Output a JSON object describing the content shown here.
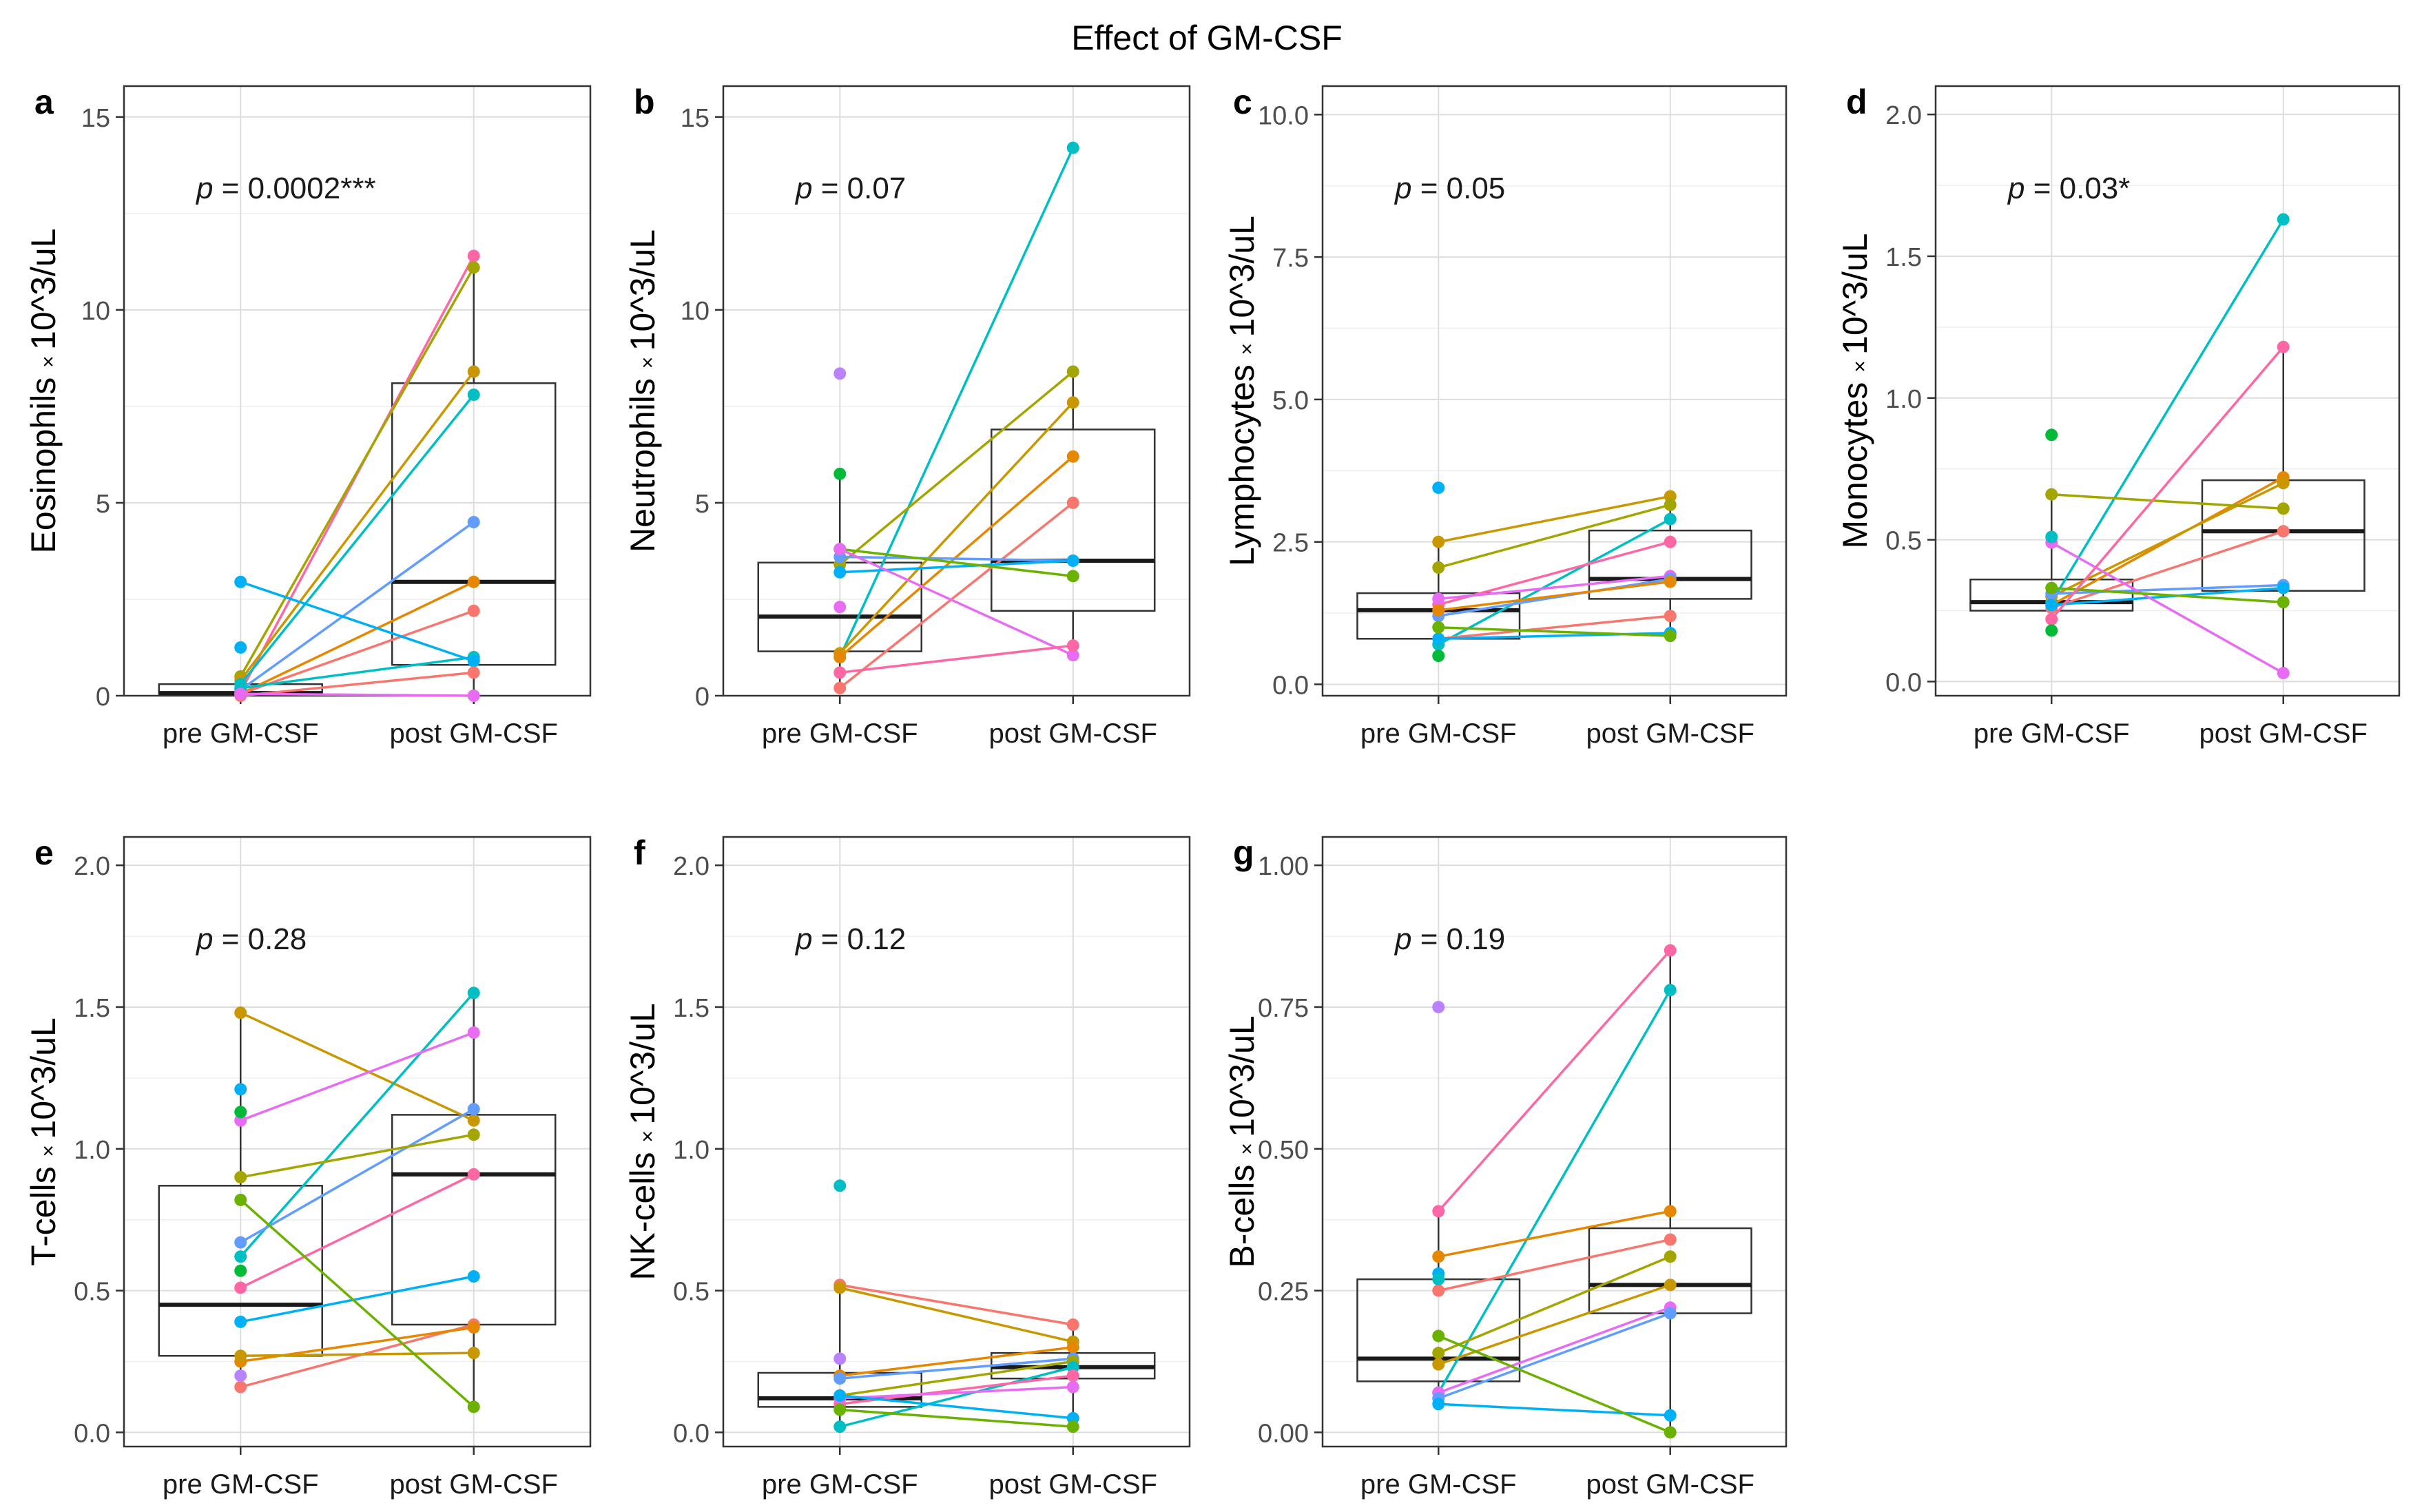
{
  "title": "Effect of GM-CSF",
  "ylabel_suffix": "10^3/uL",
  "ylabel_times": "×",
  "x_categories": [
    "pre GM-CSF",
    "post GM-CSF"
  ],
  "p_prefix": "p",
  "colors": {
    "s1": "#F8766D",
    "s2": "#E58700",
    "s3": "#A3A500",
    "s4": "#6BB100",
    "s5": "#00BA38",
    "s6": "#00BFC4",
    "s7": "#00B0F6",
    "s8": "#619CFF",
    "s9": "#B983FF",
    "s10": "#E76BF3",
    "s11": "#FF67A4",
    "s12": "#C99800",
    "grid": "#e5e5e5",
    "frame": "#333333",
    "box": "#333333"
  },
  "chart_data": [
    {
      "id": "a",
      "panel_label": "a",
      "cell_type": "Eosinophils",
      "type": "box+paired",
      "ylim": [
        0,
        15.8
      ],
      "yticks": [
        0,
        5,
        10,
        15
      ],
      "ytick_labels": [
        "0",
        "5",
        "10",
        "15"
      ],
      "p_value": "= 0.0002***",
      "box": {
        "pre": [
          0.05,
          0.07,
          0.3
        ],
        "post": [
          0.8,
          2.95,
          8.1
        ]
      },
      "whiskers": {
        "pre": [
          0,
          0.5
        ],
        "post": [
          0,
          11.4
        ]
      },
      "pairs": [
        {
          "color": "s11",
          "pre": 0.1,
          "post": 11.4
        },
        {
          "color": "s3",
          "pre": 0.5,
          "post": 11.1
        },
        {
          "color": "s12",
          "pre": 0.4,
          "post": 8.4
        },
        {
          "color": "s6",
          "pre": 0.3,
          "post": 7.8
        },
        {
          "color": "s8",
          "pre": 0.15,
          "post": 4.5
        },
        {
          "color": "s2",
          "pre": 0.05,
          "post": 2.95
        },
        {
          "color": "s1",
          "pre": 0.05,
          "post": 2.2
        },
        {
          "color": "s6",
          "pre": 0.2,
          "post": 1.0
        },
        {
          "color": "s7",
          "pre": 2.95,
          "post": 0.9
        },
        {
          "color": "s1",
          "pre": 0.0,
          "post": 0.6
        },
        {
          "color": "s10",
          "pre": 0.05,
          "post": 0.0
        },
        {
          "color": "s7",
          "pre": 1.25,
          "post": null
        }
      ]
    },
    {
      "id": "b",
      "panel_label": "b",
      "cell_type": "Neutrophils",
      "type": "box+paired",
      "ylim": [
        0,
        15.8
      ],
      "yticks": [
        0,
        5,
        10,
        15
      ],
      "ytick_labels": [
        "0",
        "5",
        "10",
        "15"
      ],
      "p_value": "= 0.07",
      "box": {
        "pre": [
          1.15,
          2.05,
          3.45
        ],
        "post": [
          2.2,
          3.5,
          6.9
        ]
      },
      "whiskers": {
        "pre": [
          0.2,
          5.75
        ],
        "post": [
          1.05,
          8.4
        ]
      },
      "pairs": [
        {
          "color": "s6",
          "pre": 1.0,
          "post": 14.2
        },
        {
          "color": "s3",
          "pre": 3.4,
          "post": 8.4
        },
        {
          "color": "s12",
          "pre": 1.1,
          "post": 7.6
        },
        {
          "color": "s2",
          "pre": 1.0,
          "post": 6.2
        },
        {
          "color": "s1",
          "pre": 0.2,
          "post": 5.0
        },
        {
          "color": "s8",
          "pre": 3.6,
          "post": 3.5
        },
        {
          "color": "s7",
          "pre": 3.2,
          "post": 3.5
        },
        {
          "color": "s4",
          "pre": 3.8,
          "post": 3.1
        },
        {
          "color": "s10",
          "pre": 3.8,
          "post": 1.05
        },
        {
          "color": "s11",
          "pre": 0.6,
          "post": 1.3
        },
        {
          "color": "s9",
          "pre": 8.35,
          "post": null
        },
        {
          "color": "s5",
          "pre": 5.75,
          "post": null
        },
        {
          "color": "s10",
          "pre": 2.3,
          "post": null
        }
      ]
    },
    {
      "id": "c",
      "panel_label": "c",
      "cell_type": "Lymphocytes",
      "type": "box+paired",
      "ylim": [
        -0.2,
        10.5
      ],
      "yticks": [
        0,
        2.5,
        5,
        7.5,
        10
      ],
      "ytick_labels": [
        "0.0",
        "2.5",
        "5.0",
        "7.5",
        "10.0"
      ],
      "p_value": "= 0.05",
      "box": {
        "pre": [
          0.8,
          1.3,
          1.6
        ],
        "post": [
          1.5,
          1.85,
          2.7
        ]
      },
      "whiskers": {
        "pre": [
          0.5,
          2.5
        ],
        "post": [
          0.85,
          3.3
        ]
      },
      "pairs": [
        {
          "color": "s12",
          "pre": 2.5,
          "post": 3.3
        },
        {
          "color": "s3",
          "pre": 2.05,
          "post": 3.15
        },
        {
          "color": "s6",
          "pre": 0.7,
          "post": 2.9
        },
        {
          "color": "s11",
          "pre": 1.4,
          "post": 2.5
        },
        {
          "color": "s10",
          "pre": 1.5,
          "post": 1.9
        },
        {
          "color": "s8",
          "pre": 1.2,
          "post": 1.85
        },
        {
          "color": "s2",
          "pre": 1.3,
          "post": 1.8
        },
        {
          "color": "s1",
          "pre": 0.8,
          "post": 1.2
        },
        {
          "color": "s7",
          "pre": 0.8,
          "post": 0.9
        },
        {
          "color": "s4",
          "pre": 1.0,
          "post": 0.85
        },
        {
          "color": "s7",
          "pre": 3.45,
          "post": null
        },
        {
          "color": "s5",
          "pre": 0.5,
          "post": null
        }
      ]
    },
    {
      "id": "d",
      "panel_label": "d",
      "cell_type": "Monocytes",
      "type": "box+paired",
      "ylim": [
        -0.05,
        2.1
      ],
      "yticks": [
        0,
        0.5,
        1,
        1.5,
        2
      ],
      "ytick_labels": [
        "0.0",
        "0.5",
        "1.0",
        "1.5",
        "2.0"
      ],
      "p_value": "= 0.03*",
      "box": {
        "pre": [
          0.25,
          0.28,
          0.36
        ],
        "post": [
          0.32,
          0.53,
          0.71
        ]
      },
      "whiskers": {
        "pre": [
          0.18,
          0.67
        ],
        "post": [
          0.03,
          1.18
        ]
      },
      "pairs": [
        {
          "color": "s6",
          "pre": 0.28,
          "post": 1.63
        },
        {
          "color": "s2",
          "pre": 0.27,
          "post": 0.72
        },
        {
          "color": "s12",
          "pre": 0.3,
          "post": 0.7
        },
        {
          "color": "s3",
          "pre": 0.66,
          "post": 0.61
        },
        {
          "color": "s1",
          "pre": 0.26,
          "post": 0.53
        },
        {
          "color": "s8",
          "pre": 0.31,
          "post": 0.34
        },
        {
          "color": "s7",
          "pre": 0.27,
          "post": 0.33
        },
        {
          "color": "s10",
          "pre": 0.49,
          "post": 0.03
        },
        {
          "color": "s4",
          "pre": 0.33,
          "post": 0.28
        },
        {
          "color": "s11",
          "pre": 0.22,
          "post": 1.18
        },
        {
          "color": "s5",
          "pre": 0.87,
          "post": null
        },
        {
          "color": "s6",
          "pre": 0.51,
          "post": null
        },
        {
          "color": "s5",
          "pre": 0.18,
          "post": null
        }
      ]
    },
    {
      "id": "e",
      "panel_label": "e",
      "cell_type": "T-cells",
      "type": "box+paired",
      "ylim": [
        -0.05,
        2.1
      ],
      "yticks": [
        0,
        0.5,
        1,
        1.5,
        2
      ],
      "ytick_labels": [
        "0.0",
        "0.5",
        "1.0",
        "1.5",
        "2.0"
      ],
      "p_value": "= 0.28",
      "box": {
        "pre": [
          0.27,
          0.45,
          0.87
        ],
        "post": [
          0.38,
          0.91,
          1.12
        ]
      },
      "whiskers": {
        "pre": [
          0.16,
          1.48
        ],
        "post": [
          0.09,
          1.55
        ]
      },
      "pairs": [
        {
          "color": "s12",
          "pre": 1.48,
          "post": 1.1
        },
        {
          "color": "s6",
          "pre": 0.62,
          "post": 1.55
        },
        {
          "color": "s10",
          "pre": 1.1,
          "post": 1.41
        },
        {
          "color": "s8",
          "pre": 0.67,
          "post": 1.14
        },
        {
          "color": "s3",
          "pre": 0.9,
          "post": 1.05
        },
        {
          "color": "s11",
          "pre": 0.51,
          "post": 0.91
        },
        {
          "color": "s7",
          "pre": 0.39,
          "post": 0.55
        },
        {
          "color": "s1",
          "pre": 0.16,
          "post": 0.38
        },
        {
          "color": "s2",
          "pre": 0.25,
          "post": 0.37
        },
        {
          "color": "s12",
          "pre": 0.27,
          "post": 0.28
        },
        {
          "color": "s4",
          "pre": 0.82,
          "post": 0.09
        },
        {
          "color": "s7",
          "pre": 1.21,
          "post": null
        },
        {
          "color": "s5",
          "pre": 1.13,
          "post": null
        },
        {
          "color": "s5",
          "pre": 0.57,
          "post": null
        },
        {
          "color": "s9",
          "pre": 0.2,
          "post": null
        }
      ]
    },
    {
      "id": "f",
      "panel_label": "f",
      "cell_type": "NK-cells",
      "type": "box+paired",
      "ylim": [
        -0.05,
        2.1
      ],
      "yticks": [
        0,
        0.5,
        1,
        1.5,
        2
      ],
      "ytick_labels": [
        "0.0",
        "0.5",
        "1.0",
        "1.5",
        "2.0"
      ],
      "p_value": "= 0.12",
      "box": {
        "pre": [
          0.09,
          0.12,
          0.21
        ],
        "post": [
          0.19,
          0.23,
          0.28
        ]
      },
      "whiskers": {
        "pre": [
          0.02,
          0.52
        ],
        "post": [
          0.02,
          0.38
        ]
      },
      "pairs": [
        {
          "color": "s1",
          "pre": 0.52,
          "post": 0.38
        },
        {
          "color": "s12",
          "pre": 0.51,
          "post": 0.32
        },
        {
          "color": "s2",
          "pre": 0.2,
          "post": 0.3
        },
        {
          "color": "s8",
          "pre": 0.19,
          "post": 0.26
        },
        {
          "color": "s3",
          "pre": 0.13,
          "post": 0.25
        },
        {
          "color": "s6",
          "pre": 0.02,
          "post": 0.23
        },
        {
          "color": "s11",
          "pre": 0.1,
          "post": 0.2
        },
        {
          "color": "s10",
          "pre": 0.12,
          "post": 0.16
        },
        {
          "color": "s7",
          "pre": 0.13,
          "post": 0.05
        },
        {
          "color": "s4",
          "pre": 0.08,
          "post": 0.02
        },
        {
          "color": "s6",
          "pre": 0.87,
          "post": null
        },
        {
          "color": "s9",
          "pre": 0.26,
          "post": null
        }
      ]
    },
    {
      "id": "g",
      "panel_label": "g",
      "cell_type": "B-cells",
      "type": "box+paired",
      "ylim": [
        -0.025,
        1.05
      ],
      "yticks": [
        0,
        0.25,
        0.5,
        0.75,
        1
      ],
      "ytick_labels": [
        "0.00",
        "0.25",
        "0.50",
        "0.75",
        "1.00"
      ],
      "p_value": "= 0.19",
      "box": {
        "pre": [
          0.09,
          0.13,
          0.27
        ],
        "post": [
          0.21,
          0.26,
          0.36
        ]
      },
      "whiskers": {
        "pre": [
          0.05,
          0.39
        ],
        "post": [
          0.0,
          0.85
        ]
      },
      "pairs": [
        {
          "color": "s6",
          "pre": 0.07,
          "post": 0.78
        },
        {
          "color": "s2",
          "pre": 0.31,
          "post": 0.39
        },
        {
          "color": "s1",
          "pre": 0.25,
          "post": 0.34
        },
        {
          "color": "s3",
          "pre": 0.14,
          "post": 0.31
        },
        {
          "color": "s12",
          "pre": 0.12,
          "post": 0.26
        },
        {
          "color": "s10",
          "pre": 0.07,
          "post": 0.22
        },
        {
          "color": "s8",
          "pre": 0.06,
          "post": 0.21
        },
        {
          "color": "s7",
          "pre": 0.05,
          "post": 0.03
        },
        {
          "color": "s4",
          "pre": 0.17,
          "post": 0.0
        },
        {
          "color": "s11",
          "pre": 0.39,
          "post": 0.85
        },
        {
          "color": "s9",
          "pre": 0.75,
          "post": null
        },
        {
          "color": "s7",
          "pre": 0.28,
          "post": null
        },
        {
          "color": "s6",
          "pre": 0.27,
          "post": null
        }
      ]
    }
  ]
}
